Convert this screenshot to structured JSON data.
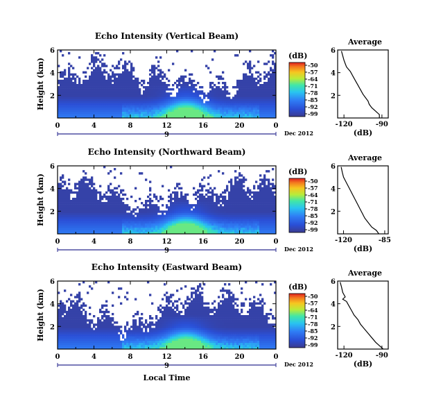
{
  "figure": {
    "date_label": "Dec 2012",
    "time_xlabel": "Local Time",
    "day_label": "9"
  },
  "colorbar": {
    "unit_label": "(dB)",
    "ticks": [
      "-50",
      "-57",
      "-64",
      "-71",
      "-78",
      "-85",
      "-92",
      "-99"
    ]
  },
  "chart_data": [
    {
      "type": "heatmap",
      "title": "Echo Intensity (Vertical Beam)",
      "ylabel": "Height (km)",
      "x_ticks": [
        "0",
        "4",
        "8",
        "12",
        "16",
        "20",
        "0"
      ],
      "xlim": [
        0,
        24
      ],
      "y_ticks": [
        "2",
        "4",
        "6"
      ],
      "ylim": [
        0,
        6
      ],
      "clim": [
        -99,
        -50
      ],
      "avg": {
        "title": "Average",
        "xlabel": "(dB)",
        "x_ticks": [
          "-120",
          "-90"
        ],
        "y_ticks": [
          "2",
          "4",
          "6"
        ],
        "xlim": [
          -125,
          -85
        ],
        "profile": [
          [
            -92,
            0.0
          ],
          [
            -92,
            0.3
          ],
          [
            -95,
            0.6
          ],
          [
            -98,
            0.9
          ],
          [
            -100,
            1.2
          ],
          [
            -101,
            1.5
          ],
          [
            -103,
            1.8
          ],
          [
            -105,
            2.1
          ],
          [
            -107,
            2.5
          ],
          [
            -109,
            2.9
          ],
          [
            -111,
            3.3
          ],
          [
            -113,
            3.7
          ],
          [
            -115,
            4.1
          ],
          [
            -118,
            4.5
          ],
          [
            -119,
            4.8
          ],
          [
            -120,
            5.1
          ],
          [
            -121,
            5.5
          ],
          [
            -122,
            5.9
          ]
        ]
      }
    },
    {
      "type": "heatmap",
      "title": "Echo Intensity (Northward Beam)",
      "ylabel": "Height (km)",
      "x_ticks": [
        "0",
        "4",
        "8",
        "12",
        "16",
        "20",
        "0"
      ],
      "xlim": [
        0,
        24
      ],
      "y_ticks": [
        "2",
        "4",
        "6"
      ],
      "ylim": [
        0,
        6
      ],
      "clim": [
        -99,
        -50
      ],
      "avg": {
        "title": "Average",
        "xlabel": "(dB)",
        "x_ticks": [
          "-120",
          "-85"
        ],
        "y_ticks": [
          "2",
          "4",
          "6"
        ],
        "xlim": [
          -125,
          -82
        ],
        "profile": [
          [
            -90,
            0.0
          ],
          [
            -92,
            0.3
          ],
          [
            -96,
            0.6
          ],
          [
            -99,
            1.0
          ],
          [
            -102,
            1.4
          ],
          [
            -104,
            1.8
          ],
          [
            -106,
            2.2
          ],
          [
            -108,
            2.6
          ],
          [
            -110,
            3.0
          ],
          [
            -112,
            3.4
          ],
          [
            -114,
            3.8
          ],
          [
            -116,
            4.2
          ],
          [
            -118,
            4.6
          ],
          [
            -120,
            5.0
          ],
          [
            -121,
            5.4
          ],
          [
            -122,
            5.9
          ]
        ]
      }
    },
    {
      "type": "heatmap",
      "title": "Echo Intensity (Eastward Beam)",
      "ylabel": "Height (km)",
      "x_ticks": [
        "0",
        "4",
        "8",
        "12",
        "16",
        "20",
        "0"
      ],
      "xlim": [
        0,
        24
      ],
      "y_ticks": [
        "2",
        "4",
        "6"
      ],
      "ylim": [
        0,
        6
      ],
      "clim": [
        -99,
        -50
      ],
      "avg": {
        "title": "Average",
        "xlabel": "(dB)",
        "x_ticks": [
          "-120",
          "-90"
        ],
        "y_ticks": [
          "2",
          "4",
          "6"
        ],
        "xlim": [
          -125,
          -85
        ],
        "profile": [
          [
            -89,
            0.0
          ],
          [
            -92,
            0.3
          ],
          [
            -95,
            0.6
          ],
          [
            -98,
            1.0
          ],
          [
            -101,
            1.4
          ],
          [
            -104,
            1.8
          ],
          [
            -107,
            2.2
          ],
          [
            -109,
            2.6
          ],
          [
            -112,
            3.0
          ],
          [
            -114,
            3.4
          ],
          [
            -116,
            3.8
          ],
          [
            -118,
            4.2
          ],
          [
            -121,
            4.4
          ],
          [
            -119,
            4.6
          ],
          [
            -121,
            5.0
          ],
          [
            -122,
            5.5
          ],
          [
            -123,
            5.9
          ]
        ]
      }
    }
  ]
}
